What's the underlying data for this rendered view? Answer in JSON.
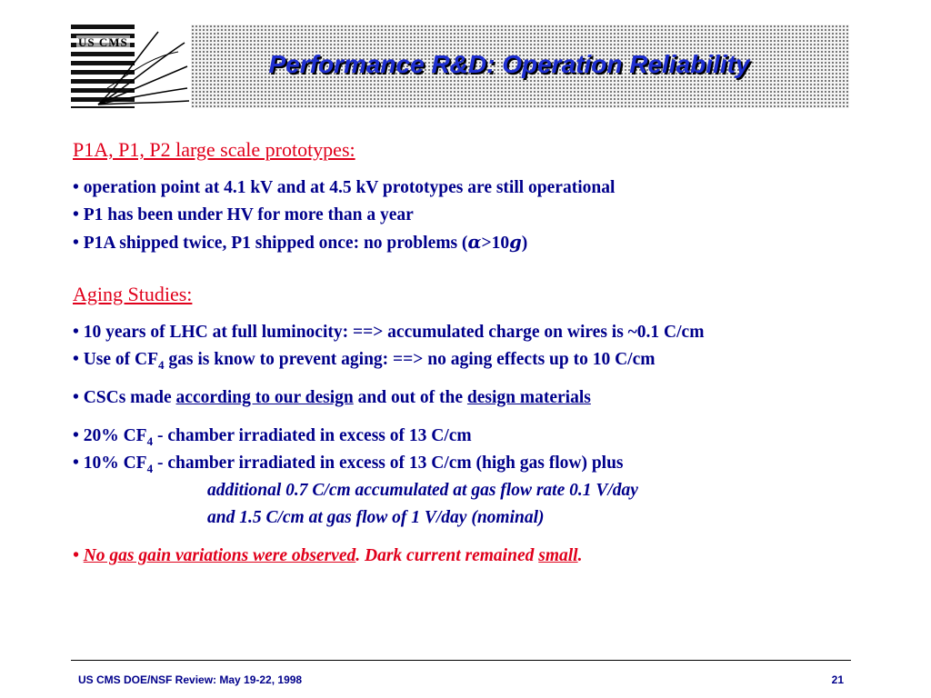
{
  "header": {
    "title": "Performance R&D: Operation Reliability",
    "logo_text": "US CMS",
    "logo_icon": "cms-logo-icon"
  },
  "section1": {
    "heading": "P1A, P1, P2  large scale prototypes:",
    "bullet1": "• operation point at 4.1 kV and at 4.5 kV prototypes are still operational",
    "bullet2": "• P1 has been under HV for more than a year",
    "bullet3_pre": "• P1A shipped twice, P1 shipped once: no problems (",
    "alpha": "α",
    "bullet3_mid": "&gt;10",
    "g": "g",
    "bullet3_post": ")"
  },
  "section2": {
    "heading": "Aging Studies:",
    "bullet1": "• 10 years of LHC at full luminocity: ==>  accumulated charge on wires is ~0.1 C/cm",
    "bullet2_pre": "• Use of CF",
    "bullet2_sub": "4",
    "bullet2_post": " gas is know to prevent aging: ==>  no aging effects up to 10 C/cm",
    "bullet3_pre": "•  CSCs made ",
    "bullet3_link1": "according to our design",
    "bullet3_mid": " and out of the ",
    "bullet3_link2": "design materials",
    "bullet4_pre": "•  20% CF",
    "bullet4_sub": "4",
    "bullet4_post": " - chamber irradiated in excess of 13 C/cm",
    "bullet5_pre": "•  10% CF",
    "bullet5_sub": "4",
    "bullet5_post": " - chamber irradiated in excess of 13 C/cm (high gas flow) plus",
    "indent1": "additional 0.7 C/cm accumulated at gas flow rate 0.1 V/day",
    "indent2": "and 1.5 C/cm at gas flow of 1 V/day (nominal)",
    "bullet6_pre": "•  ",
    "bullet6_u1": "No gas gain variations were observed",
    "bullet6_mid": ". Dark current remained ",
    "bullet6_u2": "small",
    "bullet6_post": "."
  },
  "footer": {
    "left": "US CMS DOE/NSF Review:  May 19-22, 1998",
    "page": "21"
  }
}
